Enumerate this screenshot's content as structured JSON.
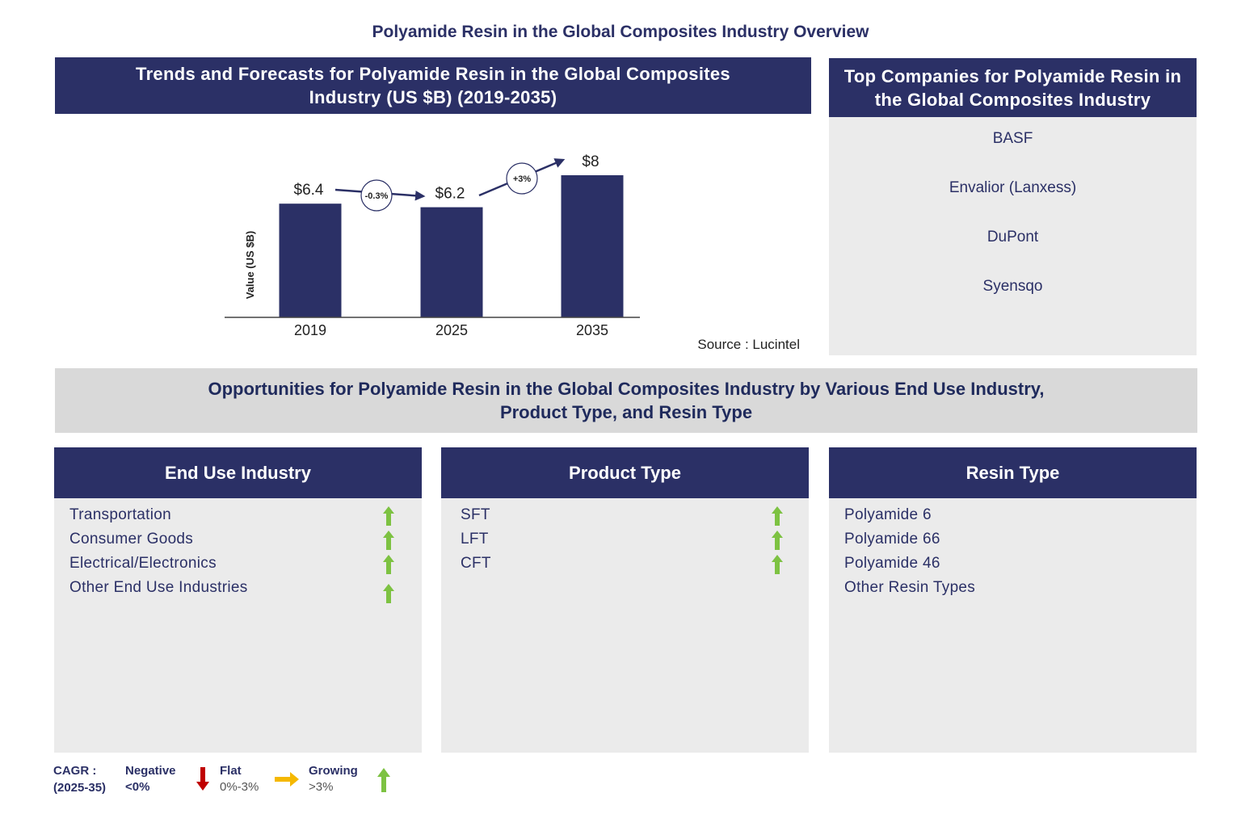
{
  "header": {
    "title": "Polyamide Resin in the Global Composites Industry Overview"
  },
  "chart_data": {
    "type": "bar",
    "title": "Trends and Forecasts for Polyamide Resin in the Global Composites Industry (US $B) (2019-2035)",
    "y_label": "Value (US $B)",
    "categories": [
      "2019",
      "2025",
      "2035"
    ],
    "values": [
      6.4,
      6.2,
      8
    ],
    "value_labels": [
      "$6.4",
      "$6.2",
      "$8"
    ],
    "color": "#2b3066",
    "growth_labels": [
      "-0.3%",
      "+3%"
    ],
    "source": "Source : Lucintel"
  },
  "companies": {
    "title": "Top Companies for Polyamide Resin in the Global Composites Industry",
    "items": [
      "BASF",
      "Envalior (Lanxess)",
      "DuPont",
      "Syensqo"
    ]
  },
  "opportunities": {
    "title": "Opportunities for Polyamide Resin in the Global Composites Industry by Various End Use Industry, Product Type, and Resin Type",
    "panels": [
      {
        "title": "End Use Industry",
        "items": [
          "Transportation",
          "Consumer Goods",
          "Electrical/Electronics",
          "Other End Use Industries"
        ],
        "growth_arrows": true
      },
      {
        "title": "Product Type",
        "items": [
          "SFT",
          "LFT",
          "CFT"
        ],
        "growth_arrows": true
      },
      {
        "title": "Resin Type",
        "items": [
          "Polyamide 6",
          "Polyamide 66",
          "Polyamide 46",
          "Other Resin Types"
        ],
        "growth_arrows": false
      }
    ]
  },
  "legend": {
    "title": "CAGR :",
    "period": "(2025-35)",
    "entries": [
      {
        "name": "Negative",
        "range": "<0%"
      },
      {
        "name": "Flat",
        "range": "0%-3%"
      },
      {
        "name": "Growing",
        "range": ">3%"
      }
    ]
  }
}
